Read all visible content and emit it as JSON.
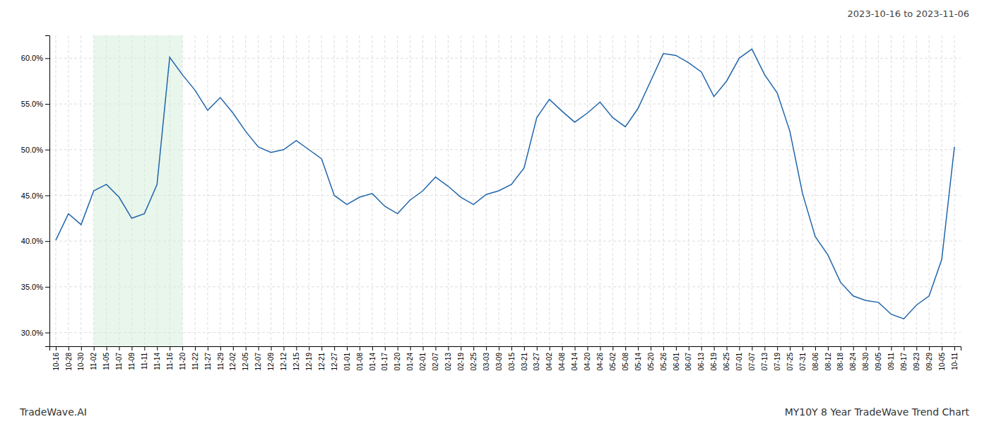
{
  "chart_data": {
    "type": "line",
    "title": "2023-10-16 to 2023-11-06",
    "annotations": [
      "TradeWave.AI",
      "MY10Y 8 Year TradeWave Trend Chart"
    ],
    "categories": [
      "10-16",
      "10-28",
      "10-30",
      "11-02",
      "11-05",
      "11-07",
      "11-09",
      "11-11",
      "11-14",
      "11-16",
      "11-20",
      "11-22",
      "11-27",
      "11-29",
      "12-02",
      "12-05",
      "12-07",
      "12-09",
      "12-12",
      "12-15",
      "12-19",
      "12-21",
      "12-27",
      "01-01",
      "01-08",
      "01-14",
      "01-17",
      "01-20",
      "01-24",
      "02-01",
      "02-07",
      "02-13",
      "02-19",
      "02-25",
      "03-03",
      "03-09",
      "03-15",
      "03-21",
      "03-27",
      "04-02",
      "04-08",
      "04-14",
      "04-20",
      "04-26",
      "05-02",
      "05-08",
      "05-14",
      "05-20",
      "05-26",
      "06-01",
      "06-07",
      "06-13",
      "06-19",
      "06-25",
      "07-01",
      "07-07",
      "07-13",
      "07-19",
      "07-25",
      "07-31",
      "08-06",
      "08-12",
      "08-18",
      "08-24",
      "08-30",
      "09-05",
      "09-11",
      "09-17",
      "09-23",
      "09-29",
      "10-05",
      "10-11"
    ],
    "values": [
      0.401,
      0.43,
      0.418,
      0.455,
      0.462,
      0.448,
      0.425,
      0.43,
      0.462,
      0.601,
      0.582,
      0.565,
      0.543,
      0.557,
      0.54,
      0.52,
      0.503,
      0.497,
      0.5,
      0.51,
      0.5,
      0.49,
      0.45,
      0.44,
      0.448,
      0.452,
      0.438,
      0.43,
      0.445,
      0.455,
      0.47,
      0.46,
      0.448,
      0.44,
      0.451,
      0.455,
      0.462,
      0.48,
      0.535,
      0.555,
      0.542,
      0.53,
      0.54,
      0.552,
      0.535,
      0.525,
      0.545,
      0.575,
      0.605,
      0.603,
      0.595,
      0.585,
      0.558,
      0.575,
      0.6,
      0.61,
      0.582,
      0.562,
      0.52,
      0.452,
      0.405,
      0.385,
      0.355,
      0.34,
      0.335,
      0.333,
      0.32,
      0.315,
      0.33,
      0.34,
      0.38,
      0.503
    ],
    "color": "#2166ac",
    "shade": {
      "from": "11-02",
      "to": "11-20",
      "color": "#d4edda"
    },
    "ylim": [
      0.285,
      0.625
    ],
    "yticks": [
      {
        "value": 0.3,
        "label": "30.0%"
      },
      {
        "value": 0.35,
        "label": "35.0%"
      },
      {
        "value": 0.4,
        "label": "40.0%"
      },
      {
        "value": 0.45,
        "label": "45.0%"
      },
      {
        "value": 0.5,
        "label": "50.0%"
      },
      {
        "value": 0.55,
        "label": "55.0%"
      },
      {
        "value": 0.6,
        "label": "60.0%"
      }
    ],
    "grid": true
  }
}
